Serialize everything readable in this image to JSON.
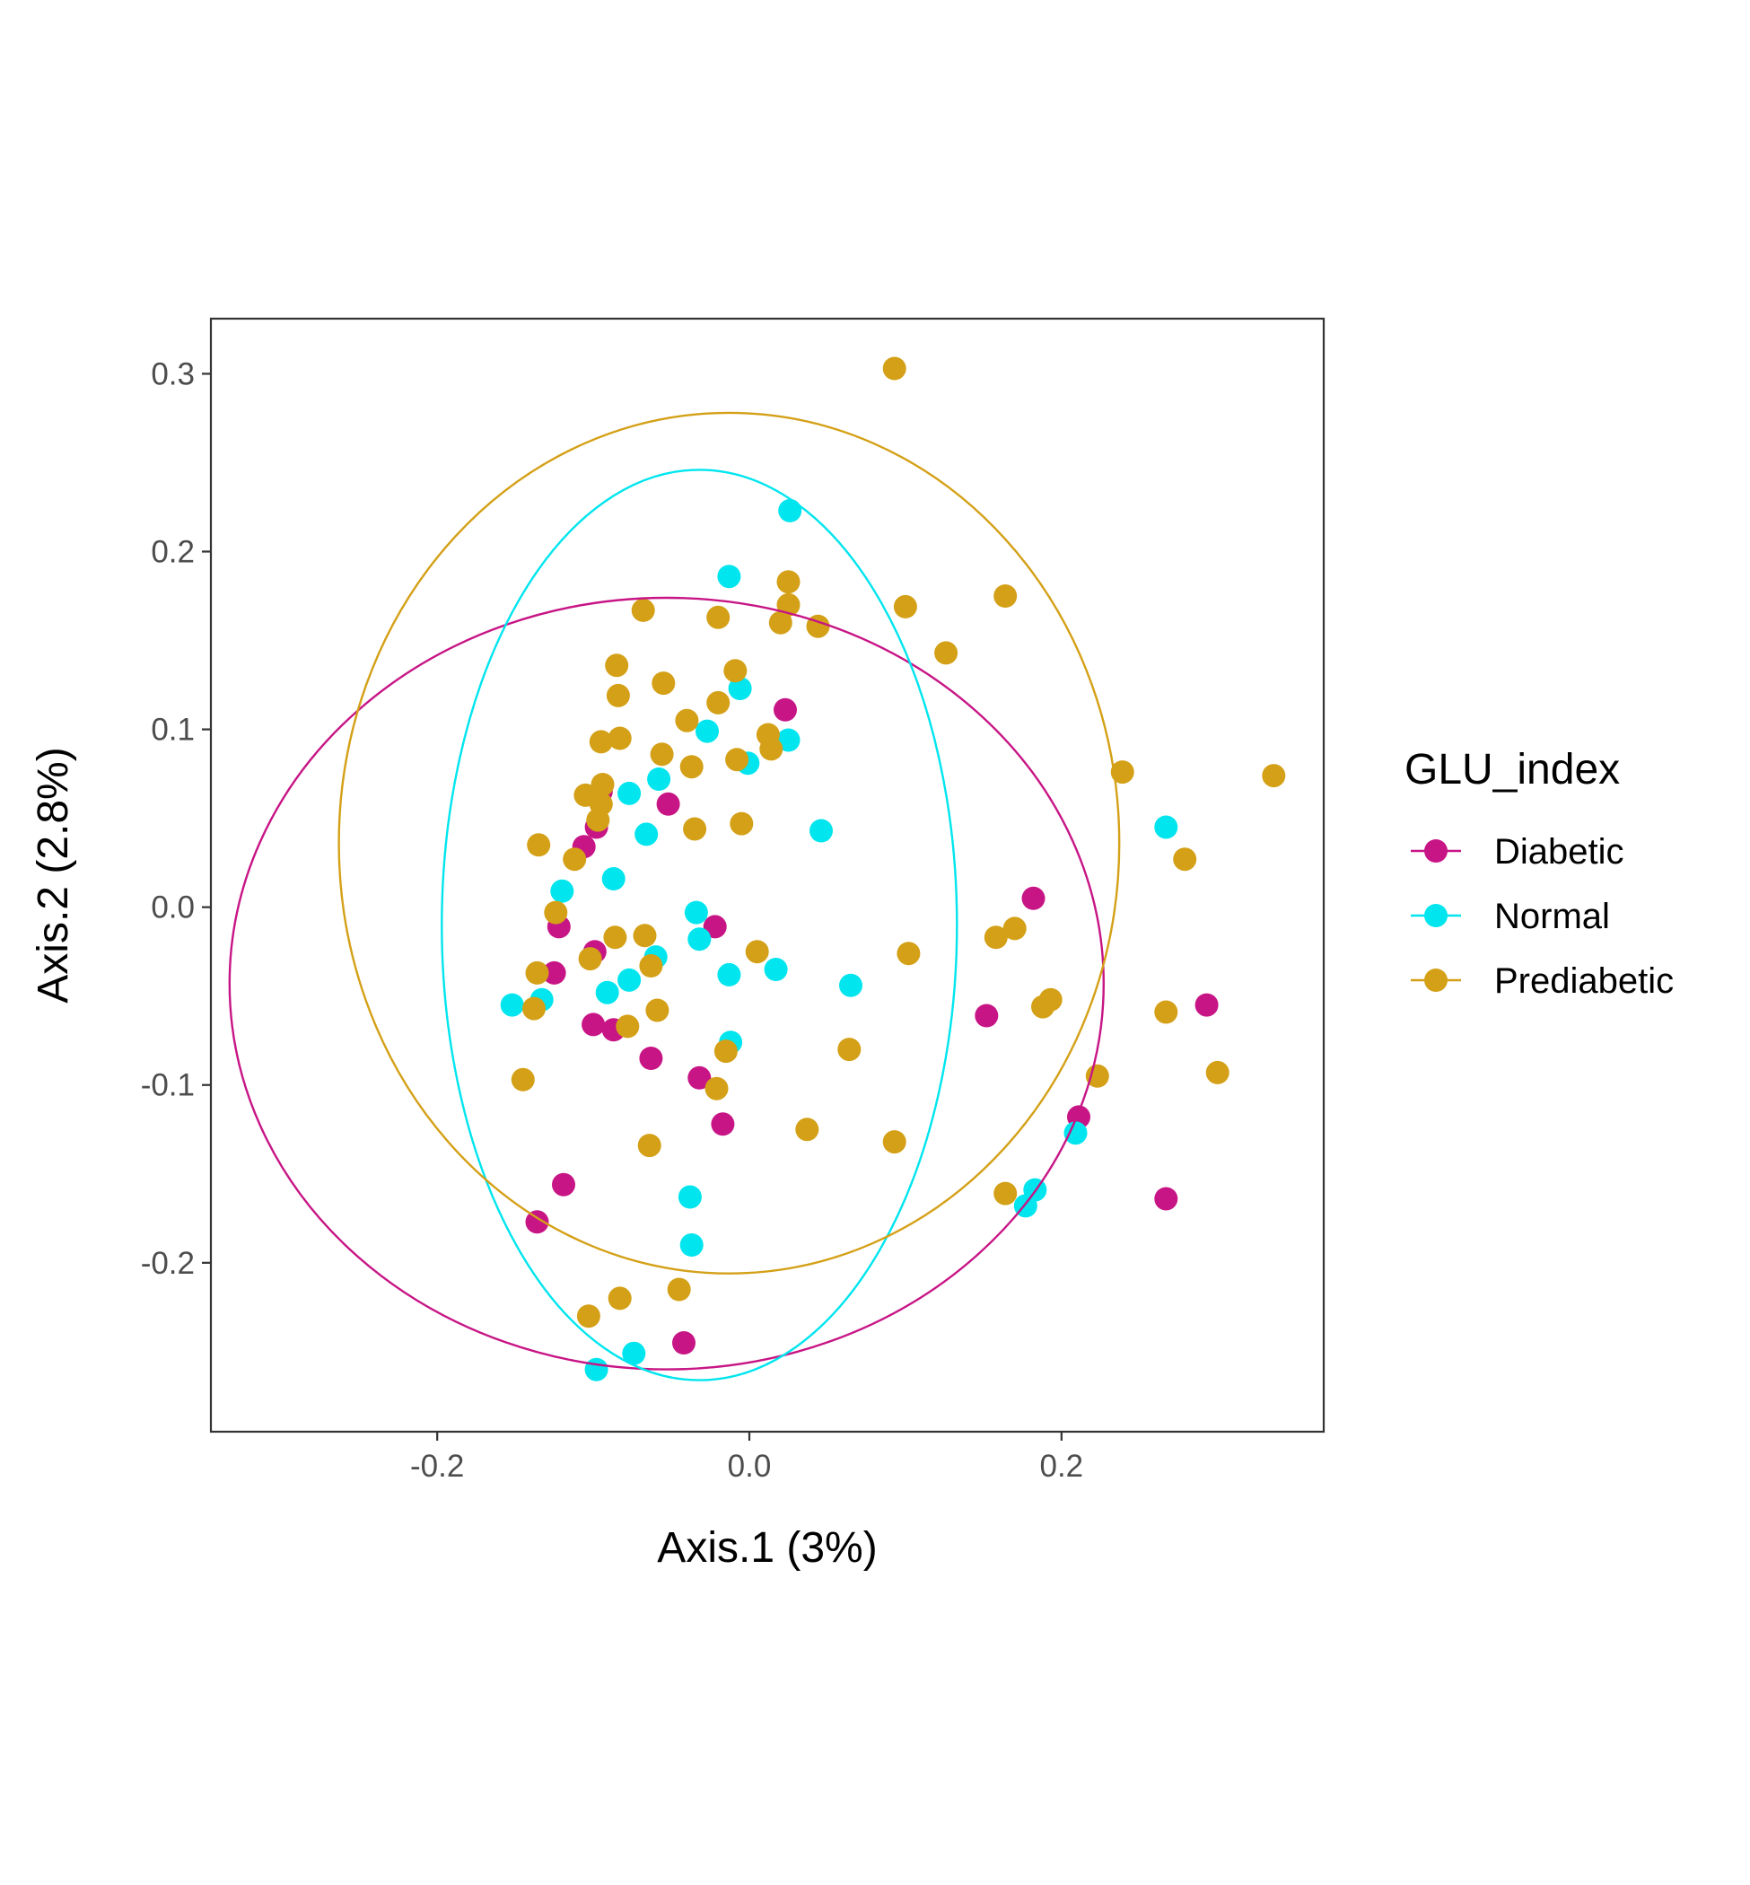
{
  "chart_data": {
    "type": "scatter",
    "xlabel": "Axis.1 (3%)",
    "ylabel": "Axis.2 (2.8%)",
    "xlim": [
      -0.345,
      0.368
    ],
    "ylim": [
      -0.295,
      0.331
    ],
    "x_ticks": [
      -0.2,
      0.0,
      0.2
    ],
    "x_tick_labels": [
      "-0.2",
      "0.0",
      "0.2"
    ],
    "y_ticks": [
      -0.2,
      -0.1,
      0.0,
      0.1,
      0.2,
      0.3
    ],
    "y_tick_labels": [
      "-0.2",
      "-0.1",
      "0.0",
      "0.1",
      "0.2",
      "0.3"
    ],
    "grid": false,
    "legend": {
      "title": "GLU_index",
      "placement": "right"
    },
    "series": [
      {
        "name": "Diabetic",
        "color": "#C71585",
        "ellipse": {
          "cx": -0.053,
          "cy": -0.043,
          "rx": 0.28,
          "ry": 0.217
        },
        "points": [
          [
            0.023,
            0.111
          ],
          [
            -0.095,
            0.065
          ],
          [
            -0.052,
            0.058
          ],
          [
            -0.098,
            0.045
          ],
          [
            -0.106,
            0.034
          ],
          [
            0.182,
            0.005
          ],
          [
            -0.122,
            -0.011
          ],
          [
            -0.022,
            -0.011
          ],
          [
            -0.099,
            -0.025
          ],
          [
            -0.125,
            -0.037
          ],
          [
            -0.1,
            -0.066
          ],
          [
            -0.087,
            -0.069
          ],
          [
            0.152,
            -0.061
          ],
          [
            0.293,
            -0.055
          ],
          [
            -0.063,
            -0.085
          ],
          [
            -0.032,
            -0.096
          ],
          [
            -0.017,
            -0.122
          ],
          [
            0.211,
            -0.118
          ],
          [
            0.267,
            -0.164
          ],
          [
            -0.119,
            -0.156
          ],
          [
            -0.136,
            -0.177
          ],
          [
            -0.042,
            -0.245
          ]
        ]
      },
      {
        "name": "Normal",
        "color": "#00E5EE",
        "ellipse": {
          "cx": -0.032,
          "cy": -0.01,
          "rx": 0.165,
          "ry": 0.256
        },
        "points": [
          [
            0.026,
            0.223
          ],
          [
            -0.013,
            0.186
          ],
          [
            -0.006,
            0.123
          ],
          [
            -0.027,
            0.099
          ],
          [
            0.025,
            0.094
          ],
          [
            -0.001,
            0.081
          ],
          [
            -0.058,
            0.072
          ],
          [
            -0.077,
            0.064
          ],
          [
            -0.066,
            0.041
          ],
          [
            0.046,
            0.043
          ],
          [
            0.267,
            0.045
          ],
          [
            -0.12,
            0.009
          ],
          [
            -0.087,
            0.016
          ],
          [
            -0.034,
            -0.003
          ],
          [
            -0.032,
            -0.018
          ],
          [
            -0.06,
            -0.028
          ],
          [
            -0.077,
            -0.041
          ],
          [
            -0.013,
            -0.038
          ],
          [
            0.017,
            -0.035
          ],
          [
            0.065,
            -0.044
          ],
          [
            -0.091,
            -0.048
          ],
          [
            -0.133,
            -0.052
          ],
          [
            -0.152,
            -0.055
          ],
          [
            -0.012,
            -0.076
          ],
          [
            0.209,
            -0.127
          ],
          [
            0.183,
            -0.159
          ],
          [
            0.177,
            -0.168
          ],
          [
            -0.038,
            -0.163
          ],
          [
            -0.037,
            -0.19
          ],
          [
            -0.074,
            -0.251
          ],
          [
            -0.098,
            -0.26
          ]
        ]
      },
      {
        "name": "Prediabetic",
        "color": "#D4A017",
        "ellipse": {
          "cx": -0.013,
          "cy": 0.036,
          "rx": 0.25,
          "ry": 0.242
        },
        "points": [
          [
            0.093,
            0.303
          ],
          [
            0.164,
            0.175
          ],
          [
            0.025,
            0.183
          ],
          [
            0.1,
            0.169
          ],
          [
            -0.068,
            0.167
          ],
          [
            -0.02,
            0.163
          ],
          [
            0.025,
            0.17
          ],
          [
            0.02,
            0.16
          ],
          [
            0.044,
            0.158
          ],
          [
            0.126,
            0.143
          ],
          [
            -0.085,
            0.136
          ],
          [
            -0.009,
            0.133
          ],
          [
            -0.055,
            0.126
          ],
          [
            -0.084,
            0.119
          ],
          [
            -0.02,
            0.115
          ],
          [
            -0.04,
            0.105
          ],
          [
            -0.083,
            0.095
          ],
          [
            -0.095,
            0.093
          ],
          [
            0.012,
            0.097
          ],
          [
            0.014,
            0.089
          ],
          [
            -0.056,
            0.086
          ],
          [
            -0.008,
            0.083
          ],
          [
            -0.037,
            0.079
          ],
          [
            0.239,
            0.076
          ],
          [
            0.336,
            0.074
          ],
          [
            -0.094,
            0.069
          ],
          [
            -0.105,
            0.063
          ],
          [
            -0.095,
            0.058
          ],
          [
            -0.097,
            0.049
          ],
          [
            -0.005,
            0.047
          ],
          [
            -0.035,
            0.044
          ],
          [
            -0.135,
            0.035
          ],
          [
            -0.112,
            0.027
          ],
          [
            0.279,
            0.027
          ],
          [
            -0.124,
            -0.003
          ],
          [
            0.17,
            -0.012
          ],
          [
            0.158,
            -0.017
          ],
          [
            -0.086,
            -0.017
          ],
          [
            -0.067,
            -0.016
          ],
          [
            -0.102,
            -0.029
          ],
          [
            -0.063,
            -0.033
          ],
          [
            0.102,
            -0.026
          ],
          [
            0.005,
            -0.025
          ],
          [
            -0.136,
            -0.037
          ],
          [
            0.193,
            -0.052
          ],
          [
            0.188,
            -0.056
          ],
          [
            -0.138,
            -0.057
          ],
          [
            0.267,
            -0.059
          ],
          [
            -0.059,
            -0.058
          ],
          [
            -0.078,
            -0.067
          ],
          [
            0.064,
            -0.08
          ],
          [
            -0.015,
            -0.081
          ],
          [
            0.3,
            -0.093
          ],
          [
            0.223,
            -0.095
          ],
          [
            -0.145,
            -0.097
          ],
          [
            -0.021,
            -0.102
          ],
          [
            0.037,
            -0.125
          ],
          [
            0.093,
            -0.132
          ],
          [
            -0.064,
            -0.134
          ],
          [
            0.164,
            -0.161
          ],
          [
            -0.045,
            -0.215
          ],
          [
            -0.083,
            -0.22
          ],
          [
            -0.103,
            -0.23
          ]
        ]
      }
    ]
  }
}
